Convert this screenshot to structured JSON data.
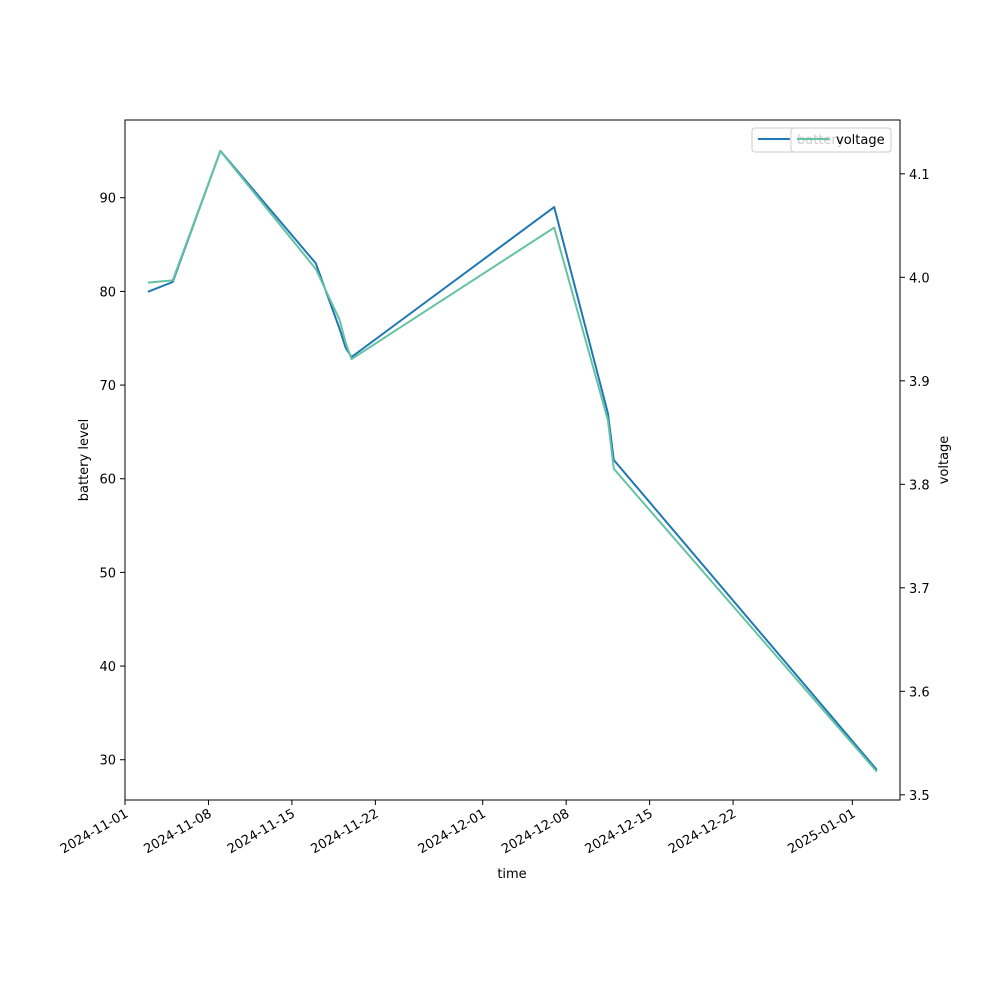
{
  "chart_data": {
    "type": "line",
    "xlabel": "time",
    "ylabel_left": "battery level",
    "ylabel_right": "voltage",
    "x_ticks": [
      "2024-11-01",
      "2024-11-08",
      "2024-11-15",
      "2024-11-22",
      "2024-12-01",
      "2024-12-08",
      "2024-12-15",
      "2024-12-22",
      "2025-01-01"
    ],
    "y_left_ticks": [
      30,
      40,
      50,
      60,
      70,
      80,
      90
    ],
    "y_right_ticks": [
      "3.5",
      "3.6",
      "3.7",
      "3.8",
      "3.9",
      "4.0",
      "4.1"
    ],
    "y_left_range": [
      25.7,
      98.3
    ],
    "y_right_range": [
      3.495,
      4.152
    ],
    "x_range": [
      "2024-11-01",
      "2025-01-05"
    ],
    "grid": false,
    "legend_placement": "top-right",
    "series": [
      {
        "name": "battery",
        "axis": "left",
        "color": "#1f77b4",
        "points": [
          [
            "2024-11-03",
            80
          ],
          [
            "2024-11-05",
            81
          ],
          [
            "2024-11-09",
            95
          ],
          [
            "2024-11-17",
            83
          ],
          [
            "2024-11-19",
            76
          ],
          [
            "2024-11-19 12:00",
            74
          ],
          [
            "2024-11-20",
            73
          ],
          [
            "2024-12-07",
            89
          ],
          [
            "2024-12-11 12:00",
            67
          ],
          [
            "2024-12-12",
            62
          ],
          [
            "2025-01-03",
            29
          ]
        ]
      },
      {
        "name": "voltage",
        "axis": "right",
        "color": "#66c2a5",
        "points": [
          [
            "2024-11-03",
            3.995
          ],
          [
            "2024-11-05",
            3.997
          ],
          [
            "2024-11-09",
            4.122
          ],
          [
            "2024-11-17",
            4.008
          ],
          [
            "2024-11-19",
            3.959
          ],
          [
            "2024-11-19 12:00",
            3.937
          ],
          [
            "2024-11-20",
            3.921
          ],
          [
            "2024-12-07",
            4.048
          ],
          [
            "2024-12-11 12:00",
            3.862
          ],
          [
            "2024-12-12",
            3.815
          ],
          [
            "2025-01-03",
            3.523
          ]
        ]
      }
    ]
  },
  "legend": {
    "battery_label": "battery",
    "voltage_label": "voltage"
  }
}
